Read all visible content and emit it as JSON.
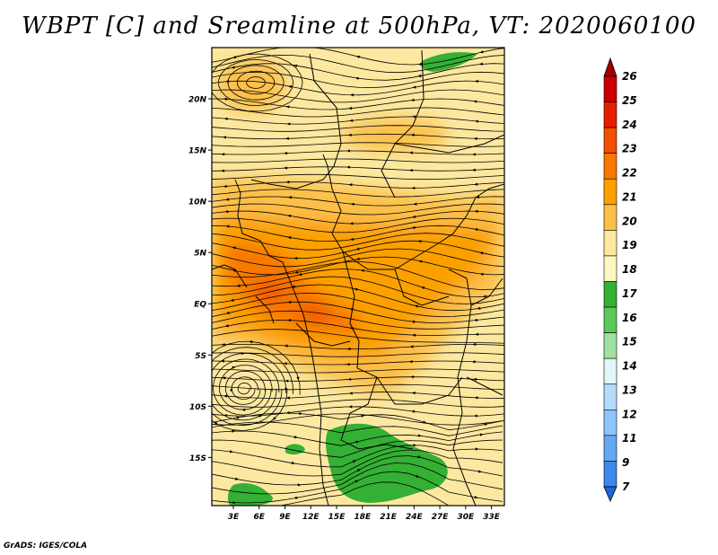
{
  "title": "WBPT [C] and Sreamline at 500hPa, VT: 2020060100",
  "credit": "GrADS: IGES/COLA",
  "map": {
    "lat_labels": [
      "20N",
      "15N",
      "10N",
      "5N",
      "EQ",
      "5S",
      "10S",
      "15S"
    ],
    "lat_values": [
      20,
      15,
      10,
      5,
      0,
      -5,
      -10,
      -15
    ],
    "lon_labels": [
      "3E",
      "6E",
      "9E",
      "12E",
      "15E",
      "18E",
      "21E",
      "24E",
      "27E",
      "30E",
      "33E"
    ],
    "lon_values": [
      3,
      6,
      9,
      12,
      15,
      18,
      21,
      24,
      27,
      30,
      33
    ],
    "lon_range": [
      0.5,
      34.5
    ],
    "lat_range": [
      -19.7,
      25
    ]
  },
  "colorbar": {
    "labels": [
      "26",
      "25",
      "24",
      "23",
      "22",
      "21",
      "20",
      "19",
      "18",
      "17",
      "16",
      "15",
      "14",
      "13",
      "12",
      "11",
      "9",
      "7"
    ],
    "colors": [
      "#a00000",
      "#c80000",
      "#e41e00",
      "#f05000",
      "#f87800",
      "#fca000",
      "#fcc048",
      "#fce8a0",
      "#fcf8c0",
      "#34b034",
      "#5cc85c",
      "#a0e0a0",
      "#e0f8f8",
      "#b4dcfc",
      "#90c4fc",
      "#64a8f4",
      "#3c88ec",
      "#1c64d8"
    ]
  }
}
